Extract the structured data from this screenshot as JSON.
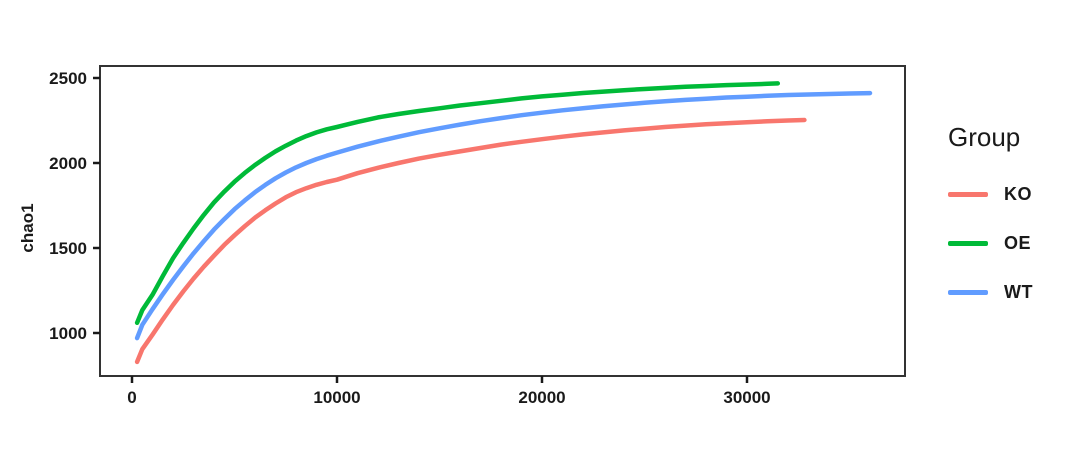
{
  "figure": {
    "background": "#ffffff"
  },
  "chart_data": {
    "type": "line",
    "title": "",
    "xlabel": "",
    "ylabel": "chao1",
    "x_ticks": [
      0,
      10000,
      20000,
      30000
    ],
    "y_ticks": [
      1000,
      1500,
      2000,
      2500
    ],
    "xlim": [
      -1600,
      37800
    ],
    "ylim": [
      750,
      2550
    ],
    "grid": false,
    "panel_border_color": "#333333",
    "tick_color": "#1a1a1a",
    "tick_label_color": "#1a1a1a",
    "legend": {
      "title": "Group",
      "position": "right",
      "entries": [
        "KO",
        "OE",
        "WT"
      ]
    },
    "series": [
      {
        "name": "KO",
        "color": "#F8766D",
        "points": [
          [
            250,
            830
          ],
          [
            500,
            905
          ],
          [
            1000,
            990
          ],
          [
            1500,
            1080
          ],
          [
            2000,
            1165
          ],
          [
            2500,
            1245
          ],
          [
            3000,
            1320
          ],
          [
            3500,
            1390
          ],
          [
            4000,
            1455
          ],
          [
            4500,
            1518
          ],
          [
            5000,
            1575
          ],
          [
            5500,
            1628
          ],
          [
            6000,
            1678
          ],
          [
            6500,
            1722
          ],
          [
            7000,
            1762
          ],
          [
            7500,
            1798
          ],
          [
            8000,
            1828
          ],
          [
            8500,
            1852
          ],
          [
            9000,
            1872
          ],
          [
            9500,
            1888
          ],
          [
            10000,
            1902
          ],
          [
            11000,
            1940
          ],
          [
            12000,
            1972
          ],
          [
            13000,
            2000
          ],
          [
            14000,
            2026
          ],
          [
            15000,
            2048
          ],
          [
            16000,
            2068
          ],
          [
            17000,
            2088
          ],
          [
            18000,
            2108
          ],
          [
            19000,
            2125
          ],
          [
            20000,
            2140
          ],
          [
            21000,
            2155
          ],
          [
            22000,
            2168
          ],
          [
            23000,
            2180
          ],
          [
            24000,
            2192
          ],
          [
            25000,
            2202
          ],
          [
            26000,
            2212
          ],
          [
            27000,
            2220
          ],
          [
            28000,
            2228
          ],
          [
            29000,
            2234
          ],
          [
            30000,
            2240
          ],
          [
            31000,
            2245
          ],
          [
            32000,
            2250
          ],
          [
            32800,
            2253
          ]
        ]
      },
      {
        "name": "OE",
        "color": "#00BA38",
        "points": [
          [
            250,
            1060
          ],
          [
            500,
            1135
          ],
          [
            1000,
            1225
          ],
          [
            1500,
            1335
          ],
          [
            2000,
            1440
          ],
          [
            2500,
            1530
          ],
          [
            3000,
            1615
          ],
          [
            3500,
            1695
          ],
          [
            4000,
            1768
          ],
          [
            4500,
            1832
          ],
          [
            5000,
            1890
          ],
          [
            5500,
            1942
          ],
          [
            6000,
            1988
          ],
          [
            6500,
            2030
          ],
          [
            7000,
            2068
          ],
          [
            7500,
            2102
          ],
          [
            8000,
            2132
          ],
          [
            8500,
            2158
          ],
          [
            9000,
            2180
          ],
          [
            9500,
            2198
          ],
          [
            10000,
            2212
          ],
          [
            11000,
            2242
          ],
          [
            12000,
            2268
          ],
          [
            13000,
            2288
          ],
          [
            14000,
            2306
          ],
          [
            15000,
            2322
          ],
          [
            16000,
            2338
          ],
          [
            17000,
            2352
          ],
          [
            18000,
            2366
          ],
          [
            19000,
            2380
          ],
          [
            20000,
            2392
          ],
          [
            21000,
            2402
          ],
          [
            22000,
            2412
          ],
          [
            23000,
            2420
          ],
          [
            24000,
            2428
          ],
          [
            25000,
            2435
          ],
          [
            26000,
            2442
          ],
          [
            27000,
            2448
          ],
          [
            28000,
            2453
          ],
          [
            29000,
            2458
          ],
          [
            30000,
            2462
          ],
          [
            31000,
            2466
          ],
          [
            31500,
            2468
          ]
        ]
      },
      {
        "name": "WT",
        "color": "#619CFF",
        "points": [
          [
            250,
            970
          ],
          [
            500,
            1048
          ],
          [
            1000,
            1140
          ],
          [
            1500,
            1228
          ],
          [
            2000,
            1312
          ],
          [
            2500,
            1392
          ],
          [
            3000,
            1468
          ],
          [
            3500,
            1540
          ],
          [
            4000,
            1608
          ],
          [
            4500,
            1670
          ],
          [
            5000,
            1728
          ],
          [
            5500,
            1780
          ],
          [
            6000,
            1828
          ],
          [
            6500,
            1871
          ],
          [
            7000,
            1910
          ],
          [
            7500,
            1944
          ],
          [
            8000,
            1974
          ],
          [
            8500,
            2000
          ],
          [
            9000,
            2023
          ],
          [
            9500,
            2043
          ],
          [
            10000,
            2061
          ],
          [
            11000,
            2096
          ],
          [
            12000,
            2127
          ],
          [
            13000,
            2155
          ],
          [
            14000,
            2181
          ],
          [
            15000,
            2204
          ],
          [
            16000,
            2226
          ],
          [
            17000,
            2246
          ],
          [
            18000,
            2264
          ],
          [
            19000,
            2281
          ],
          [
            20000,
            2296
          ],
          [
            21000,
            2310
          ],
          [
            22000,
            2322
          ],
          [
            23000,
            2334
          ],
          [
            24000,
            2344
          ],
          [
            25000,
            2354
          ],
          [
            26000,
            2363
          ],
          [
            27000,
            2371
          ],
          [
            28000,
            2378
          ],
          [
            29000,
            2385
          ],
          [
            30000,
            2390
          ],
          [
            31000,
            2395
          ],
          [
            32000,
            2400
          ],
          [
            33000,
            2403
          ],
          [
            34000,
            2406
          ],
          [
            35000,
            2409
          ],
          [
            36000,
            2411
          ]
        ]
      }
    ]
  }
}
